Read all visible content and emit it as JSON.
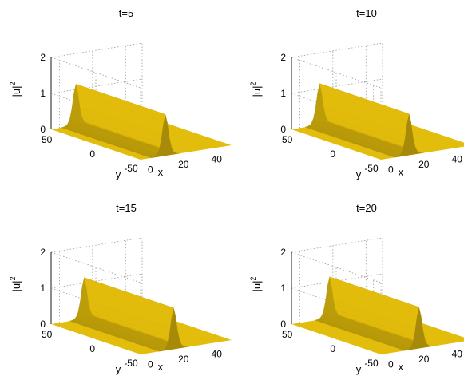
{
  "chart_data": [
    {
      "type": "surface",
      "title": "t=5",
      "xlabel": "x",
      "ylabel": "y",
      "zlabel": "|u|",
      "zlabel_sup": "2",
      "xticks": [
        "0",
        "20",
        "40"
      ],
      "yticks": [
        "50",
        "0",
        "-50"
      ],
      "zticks": [
        "0",
        "1",
        "2"
      ],
      "xlim": [
        -5,
        50
      ],
      "ylim": [
        -60,
        60
      ],
      "zlim": [
        0,
        2
      ],
      "grid": true,
      "surface_color": "#e8c10b",
      "ridge": {
        "center_x": 10,
        "peak": 1.15,
        "width": 2.5
      }
    },
    {
      "type": "surface",
      "title": "t=10",
      "xlabel": "x",
      "ylabel": "y",
      "zlabel": "|u|",
      "zlabel_sup": "2",
      "xticks": [
        "0",
        "20",
        "40"
      ],
      "yticks": [
        "50",
        "0",
        "-50"
      ],
      "zticks": [
        "0",
        "1",
        "2"
      ],
      "xlim": [
        -5,
        50
      ],
      "ylim": [
        -60,
        60
      ],
      "zlim": [
        0,
        2
      ],
      "grid": true,
      "surface_color": "#e8c10b",
      "ridge": {
        "center_x": 12,
        "peak": 1.15,
        "width": 2.5
      }
    },
    {
      "type": "surface",
      "title": "t=15",
      "xlabel": "x",
      "ylabel": "y",
      "zlabel": "|u|",
      "zlabel_sup": "2",
      "xticks": [
        "0",
        "20",
        "40"
      ],
      "yticks": [
        "50",
        "0",
        "-50"
      ],
      "zticks": [
        "0",
        "1",
        "2"
      ],
      "xlim": [
        -5,
        50
      ],
      "ylim": [
        -60,
        60
      ],
      "zlim": [
        0,
        2
      ],
      "grid": true,
      "surface_color": "#e8c10b",
      "ridge": {
        "center_x": 15,
        "peak": 1.15,
        "width": 2.5
      }
    },
    {
      "type": "surface",
      "title": "t=20",
      "xlabel": "x",
      "ylabel": "y",
      "zlabel": "|u|",
      "zlabel_sup": "2",
      "xticks": [
        "0",
        "20",
        "40"
      ],
      "yticks": [
        "50",
        "0",
        "-50"
      ],
      "zticks": [
        "0",
        "1",
        "2"
      ],
      "xlim": [
        -5,
        50
      ],
      "ylim": [
        -60,
        60
      ],
      "zlim": [
        0,
        2
      ],
      "grid": true,
      "surface_color": "#e8c10b",
      "ridge": {
        "center_x": 18,
        "peak": 1.15,
        "width": 2.5
      }
    }
  ]
}
